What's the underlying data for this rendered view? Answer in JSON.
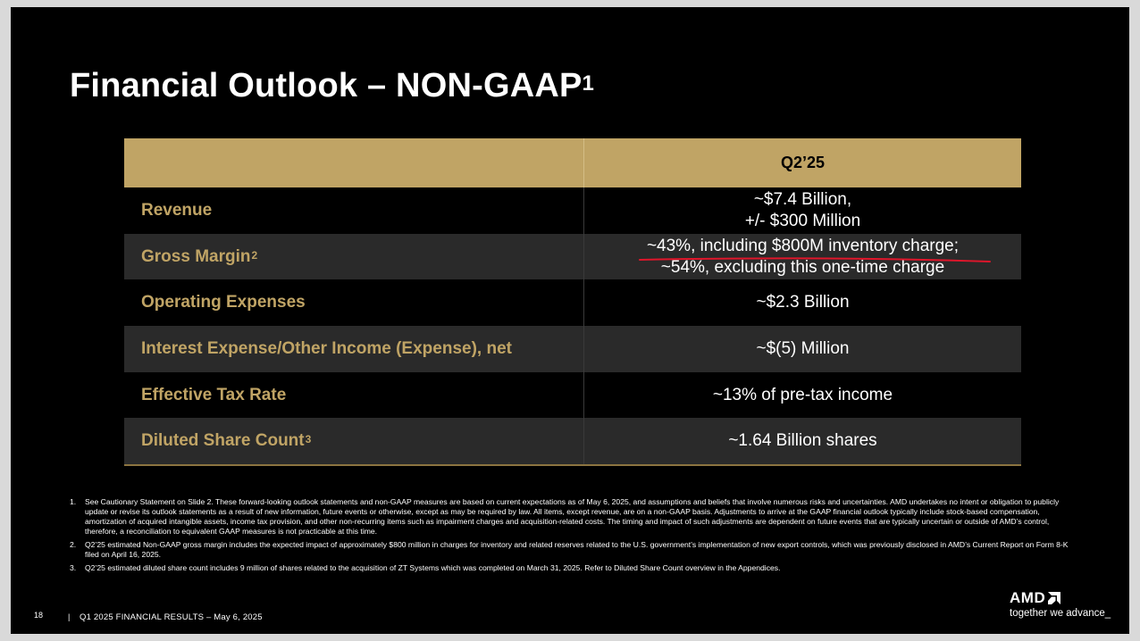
{
  "slide": {
    "title": "Financial Outlook – NON-GAAP",
    "title_footnote": "1",
    "table": {
      "header": {
        "period": "Q2’25"
      },
      "rows": [
        {
          "label": "Revenue",
          "sup": "",
          "value_lines": [
            "~$7.4 Billion,",
            "+/- $300 Million"
          ]
        },
        {
          "label": "Gross Margin",
          "sup": "2",
          "value_lines": [
            "~43%, including $800M inventory charge;",
            "~54%, excluding this one-time charge"
          ]
        },
        {
          "label": "Operating Expenses",
          "sup": "",
          "value_lines": [
            "~$2.3 Billion"
          ]
        },
        {
          "label": "Interest Expense/Other Income (Expense), net",
          "sup": "",
          "value_lines": [
            "~$(5) Million"
          ]
        },
        {
          "label": "Effective Tax Rate",
          "sup": "",
          "value_lines": [
            "~13% of pre-tax income"
          ]
        },
        {
          "label": "Diluted Share Count",
          "sup": "3",
          "value_lines": [
            "~1.64 Billion shares"
          ]
        }
      ]
    },
    "footnotes": [
      {
        "num": "1.",
        "text": "See Cautionary Statement on Slide 2. These forward-looking outlook statements and non-GAAP measures are based on current expectations as of May 6, 2025, and assumptions and beliefs that involve numerous risks and uncertainties. AMD undertakes no intent or obligation to publicly update or revise its outlook statements as a result of new information, future events or otherwise, except as may be required by law. All items, except revenue, are on a non-GAAP basis. Adjustments to arrive at the GAAP financial outlook typically include stock-based compensation, amortization of acquired intangible assets, income tax provision, and other non-recurring items such as impairment charges and acquisition-related costs. The timing and impact of such adjustments are dependent on future events that are typically uncertain or outside of AMD’s control, therefore, a reconciliation to equivalent GAAP measures is not practicable at this time."
      },
      {
        "num": "2.",
        "text": "Q2’25 estimated Non-GAAP gross margin includes the expected impact of approximately $800 million in charges for inventory and related reserves related to the U.S. government’s implementation of new export controls, which was previously disclosed in AMD’s Current Report on Form 8-K filed on April 16, 2025."
      },
      {
        "num": "3.",
        "text": "Q2’25 estimated diluted share count includes 9 million of shares related to the acquisition of ZT Systems which was completed on March 31, 2025. Refer to Diluted Share Count overview in the Appendices."
      }
    ],
    "footer": {
      "page_number": "18",
      "separator": "|",
      "text": "Q1 2025 FINANCIAL RESULTS – May 6, 2025"
    },
    "logo": {
      "brand": "AMD",
      "tagline": "together we advance_"
    },
    "colors": {
      "gold": "#c0a465",
      "background": "#000000",
      "row_dark": "#2a2a2a",
      "annotation_red": "#e0162b"
    }
  }
}
